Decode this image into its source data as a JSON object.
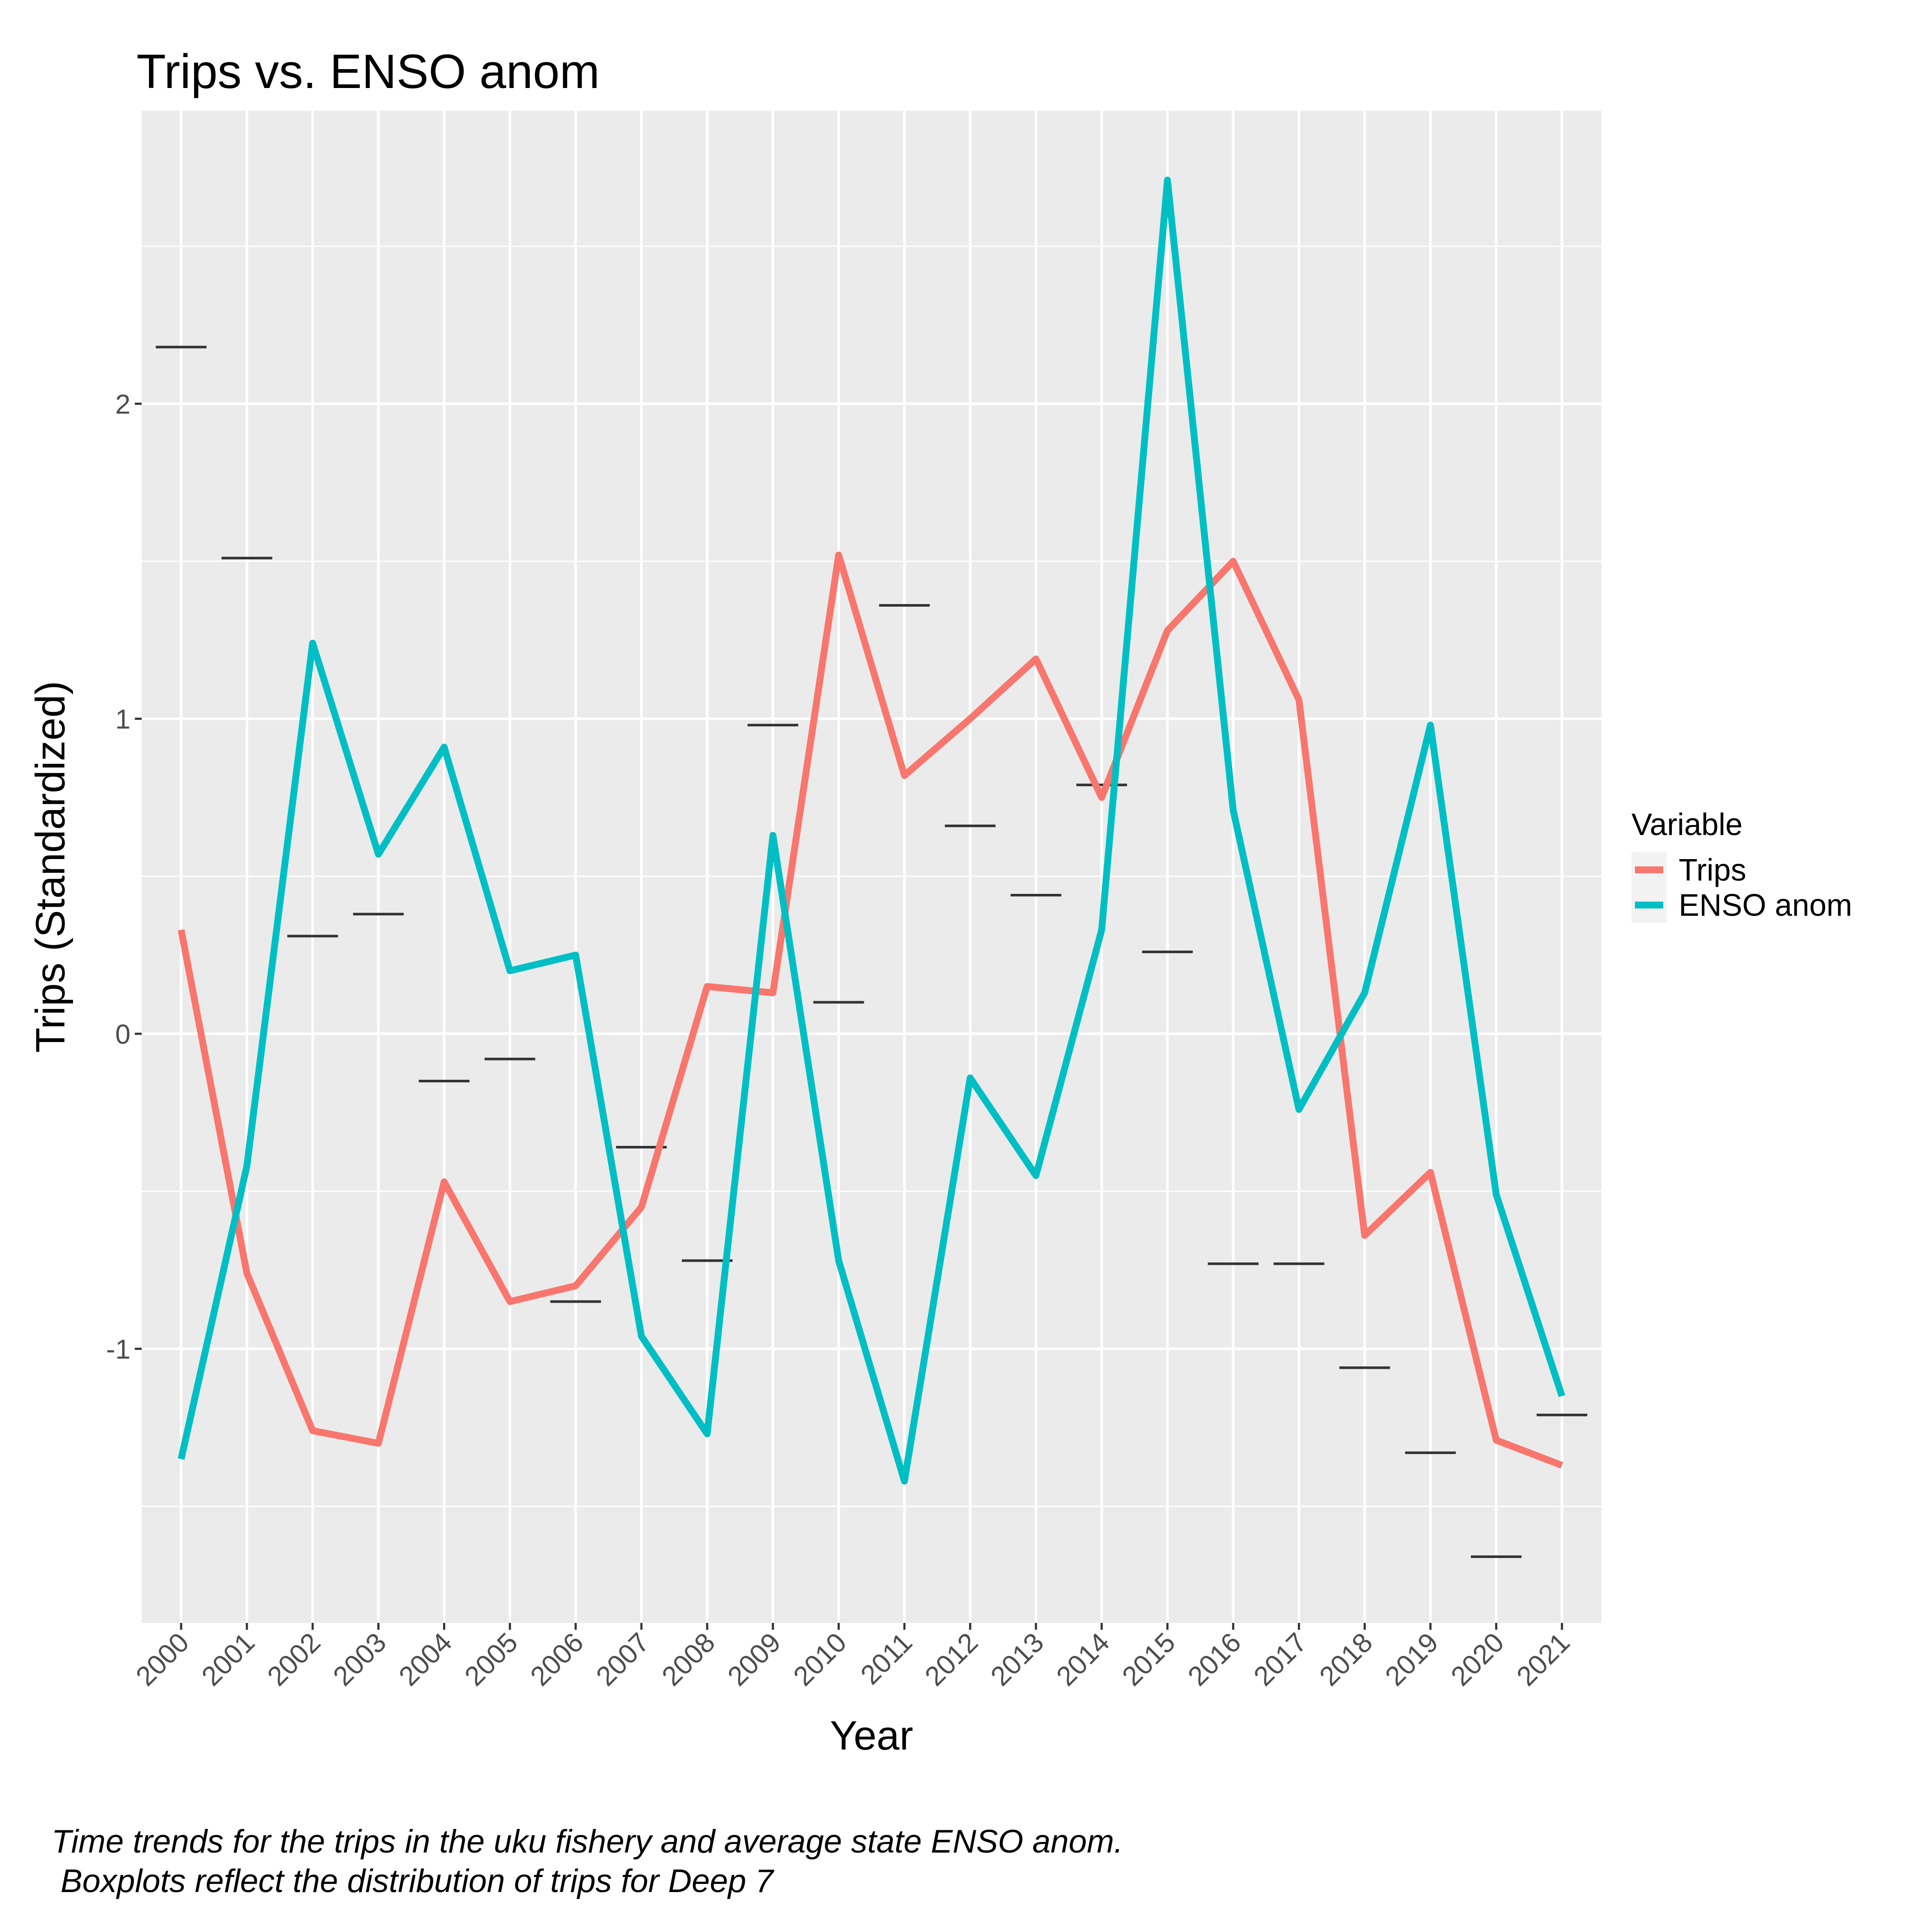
{
  "chart_data": {
    "type": "line",
    "title": "Trips vs. ENSO anom",
    "xlabel": "Year",
    "ylabel": "Trips (Standardized)",
    "categories": [
      "2000",
      "2001",
      "2002",
      "2003",
      "2004",
      "2005",
      "2006",
      "2007",
      "2008",
      "2009",
      "2010",
      "2011",
      "2012",
      "2013",
      "2014",
      "2015",
      "2016",
      "2017",
      "2018",
      "2019",
      "2020",
      "2021"
    ],
    "ylim": [
      -1.87,
      2.93
    ],
    "yticks": [
      -1,
      0,
      1,
      2
    ],
    "ytick_labels": [
      "-1",
      "0",
      "1",
      "2"
    ],
    "grid": true,
    "series": [
      {
        "name": "Trips",
        "color": "#F8766D",
        "values": [
          0.33,
          -0.76,
          -1.26,
          -1.3,
          -0.47,
          -0.85,
          -0.8,
          -0.55,
          0.15,
          0.13,
          1.52,
          0.82,
          1.0,
          1.19,
          0.75,
          1.28,
          1.5,
          1.06,
          -0.64,
          -0.44,
          -1.29,
          -1.37
        ]
      },
      {
        "name": "ENSO anom",
        "color": "#00BFC4",
        "values": [
          -1.35,
          -0.42,
          1.24,
          0.57,
          0.91,
          0.2,
          0.25,
          -0.96,
          -1.27,
          0.63,
          -0.72,
          -1.42,
          -0.14,
          -0.45,
          0.33,
          2.71,
          0.71,
          -0.24,
          0.13,
          0.98,
          -0.51,
          -1.15
        ]
      }
    ],
    "boxplot_medians": [
      2.18,
      1.51,
      0.31,
      0.38,
      -0.15,
      -0.08,
      -0.85,
      -0.36,
      -0.72,
      0.98,
      0.1,
      1.36,
      0.66,
      0.44,
      0.79,
      0.26,
      -0.73,
      -0.73,
      -1.06,
      -1.33,
      -1.66,
      -1.21
    ],
    "legend": {
      "title": "Variable",
      "position": "right",
      "entries": [
        "Trips",
        "ENSO anom"
      ]
    },
    "caption": [
      "Time trends for the trips in the uku fishery and average state ENSO anom.",
      " Boxplots reflect the distribution of trips for Deep 7"
    ]
  }
}
